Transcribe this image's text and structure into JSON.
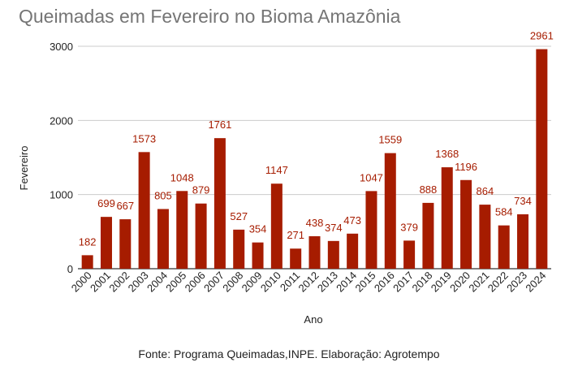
{
  "chart_data": {
    "type": "bar",
    "title": "Queimadas em Fevereiro no Bioma Amazônia",
    "source": "Fonte: Programa Queimadas,INPE. Elaboração: Agrotempo",
    "xlabel": "Ano",
    "ylabel": "Fevereiro",
    "ylim": [
      0,
      3000
    ],
    "yticks": [
      "0",
      "1000",
      "2000",
      "3000"
    ],
    "grid": true,
    "legend": "none",
    "bar_color": "#a61c00",
    "categories": [
      "2000",
      "2001",
      "2002",
      "2003",
      "2004",
      "2005",
      "2006",
      "2007",
      "2008",
      "2009",
      "2010",
      "2011",
      "2012",
      "2013",
      "2014",
      "2015",
      "2016",
      "2017",
      "2018",
      "2019",
      "2020",
      "2021",
      "2022",
      "2023",
      "2024"
    ],
    "series": [
      {
        "values": [
          182,
          699,
          667,
          1573,
          805,
          1048,
          879,
          1761,
          527,
          354,
          1147,
          271,
          438,
          374,
          473,
          1047,
          1559,
          379,
          888,
          1368,
          1196,
          864,
          584,
          734,
          2961
        ]
      }
    ],
    "data_labels": [
      "182",
      "699",
      "667",
      "1573",
      "805",
      "1048",
      "879",
      "1761",
      "527",
      "354",
      "1147",
      "271",
      "438",
      "374",
      "473",
      "1047",
      "1559",
      "379",
      "888",
      "1368",
      "1196",
      "864",
      "584",
      "734",
      "2961"
    ]
  }
}
